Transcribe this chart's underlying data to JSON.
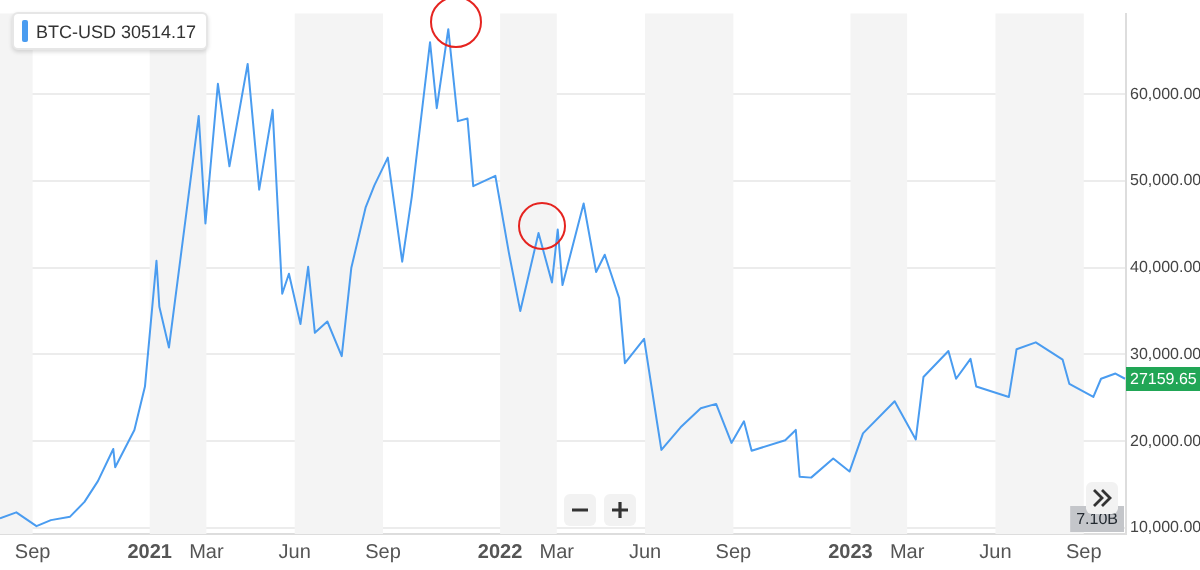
{
  "chart_data": {
    "type": "line",
    "x": [
      "2020-07-29",
      "2020-08-15",
      "2020-09-05",
      "2020-09-20",
      "2020-10-10",
      "2020-10-25",
      "2020-11-08",
      "2020-11-24",
      "2020-11-26",
      "2020-12-16",
      "2020-12-27",
      "2021-01-08",
      "2021-01-11",
      "2021-01-21",
      "2021-02-08",
      "2021-02-21",
      "2021-02-28",
      "2021-03-13",
      "2021-03-25",
      "2021-04-13",
      "2021-04-25",
      "2021-05-09",
      "2021-05-19",
      "2021-05-26",
      "2021-06-07",
      "2021-06-15",
      "2021-06-22",
      "2021-07-05",
      "2021-07-20",
      "2021-07-30",
      "2021-08-14",
      "2021-08-23",
      "2021-09-06",
      "2021-09-21",
      "2021-10-01",
      "2021-10-20",
      "2021-10-27",
      "2021-11-08",
      "2021-11-18",
      "2021-11-28",
      "2021-12-04",
      "2021-12-27",
      "2022-01-10",
      "2022-01-22",
      "2022-02-10",
      "2022-02-24",
      "2022-03-02",
      "2022-03-07",
      "2022-03-29",
      "2022-04-11",
      "2022-04-20",
      "2022-05-05",
      "2022-05-11",
      "2022-05-31",
      "2022-06-13",
      "2022-06-18",
      "2022-07-08",
      "2022-07-29",
      "2022-08-14",
      "2022-08-30",
      "2022-09-12",
      "2022-09-20",
      "2022-10-25",
      "2022-11-05",
      "2022-11-09",
      "2022-11-21",
      "2022-12-14",
      "2022-12-31",
      "2023-01-14",
      "2023-02-16",
      "2023-03-10",
      "2023-03-18",
      "2023-04-13",
      "2023-04-21",
      "2023-05-06",
      "2023-05-12",
      "2023-06-15",
      "2023-06-23",
      "2023-07-13",
      "2023-08-10",
      "2023-08-17",
      "2023-09-11",
      "2023-09-19",
      "2023-10-04",
      "2023-10-14"
    ],
    "series": [
      {
        "name": "BTC-USD 30514.17",
        "color": "#4a9cf0",
        "values": [
          11100,
          11800,
          10200,
          10900,
          11300,
          13000,
          15400,
          19100,
          17000,
          21300,
          26300,
          40800,
          35500,
          30800,
          46200,
          57500,
          45100,
          61200,
          51700,
          63500,
          49000,
          58200,
          37000,
          39300,
          33500,
          40100,
          32500,
          33800,
          29800,
          40000,
          47000,
          49500,
          52700,
          40700,
          48200,
          66000,
          58400,
          67500,
          56900,
          57200,
          49400,
          50600,
          41800,
          35000,
          44000,
          38300,
          44400,
          38000,
          47400,
          39500,
          41500,
          36500,
          29000,
          31800,
          22500,
          19000,
          21600,
          23800,
          24300,
          19800,
          22300,
          18900,
          20100,
          21300,
          15900,
          15800,
          18000,
          16500,
          20900,
          24600,
          20200,
          27400,
          30400,
          27200,
          29500,
          26300,
          25100,
          30600,
          31400,
          29400,
          26600,
          25100,
          27200,
          27800,
          27200
        ]
      }
    ],
    "xlim": [
      "2020-07-29",
      "2023-10-15"
    ],
    "xticks": [
      {
        "value": "2020-09-01",
        "label": "Sep"
      },
      {
        "value": "2021-01-01",
        "label": "2021"
      },
      {
        "value": "2021-03-01",
        "label": "Mar"
      },
      {
        "value": "2021-06-01",
        "label": "Jun"
      },
      {
        "value": "2021-09-01",
        "label": "Sep"
      },
      {
        "value": "2022-01-01",
        "label": "2022"
      },
      {
        "value": "2022-03-01",
        "label": "Mar"
      },
      {
        "value": "2022-06-01",
        "label": "Jun"
      },
      {
        "value": "2022-09-01",
        "label": "Sep"
      },
      {
        "value": "2023-01-01",
        "label": "2023"
      },
      {
        "value": "2023-03-01",
        "label": "Mar"
      },
      {
        "value": "2023-06-01",
        "label": "Jun"
      },
      {
        "value": "2023-09-01",
        "label": "Sep"
      }
    ],
    "ylim": [
      9300,
      69300
    ],
    "yticks": [
      {
        "value": 10000,
        "label": "10,000.00"
      },
      {
        "value": 20000,
        "label": "20,000.00"
      },
      {
        "value": 30000,
        "label": "30,000.00"
      },
      {
        "value": 40000,
        "label": "40,000.00"
      },
      {
        "value": 50000,
        "label": "50,000.00"
      },
      {
        "value": 60000,
        "label": "60,000.00"
      }
    ],
    "bands": [
      {
        "axis": "x",
        "from": "2020-07-29",
        "to": "2020-09-01",
        "color": "#f4f4f4"
      },
      {
        "axis": "x",
        "from": "2021-01-01",
        "to": "2021-03-01",
        "color": "#f4f4f4"
      },
      {
        "axis": "x",
        "from": "2021-06-01",
        "to": "2021-09-01",
        "color": "#f4f4f4"
      },
      {
        "axis": "x",
        "from": "2022-01-01",
        "to": "2022-03-01",
        "color": "#f4f4f4"
      },
      {
        "axis": "x",
        "from": "2022-06-01",
        "to": "2022-09-01",
        "color": "#f4f4f4"
      },
      {
        "axis": "x",
        "from": "2023-01-01",
        "to": "2023-03-01",
        "color": "#f4f4f4"
      },
      {
        "axis": "x",
        "from": "2023-06-01",
        "to": "2023-09-01",
        "color": "#f4f4f4"
      }
    ],
    "annotations": [
      {
        "text": "27159.65",
        "y": 27159.65
      },
      "7.10B"
    ],
    "grid": "y",
    "legend": "top left",
    "marker": "none",
    "line_style": "solid"
  }
}
